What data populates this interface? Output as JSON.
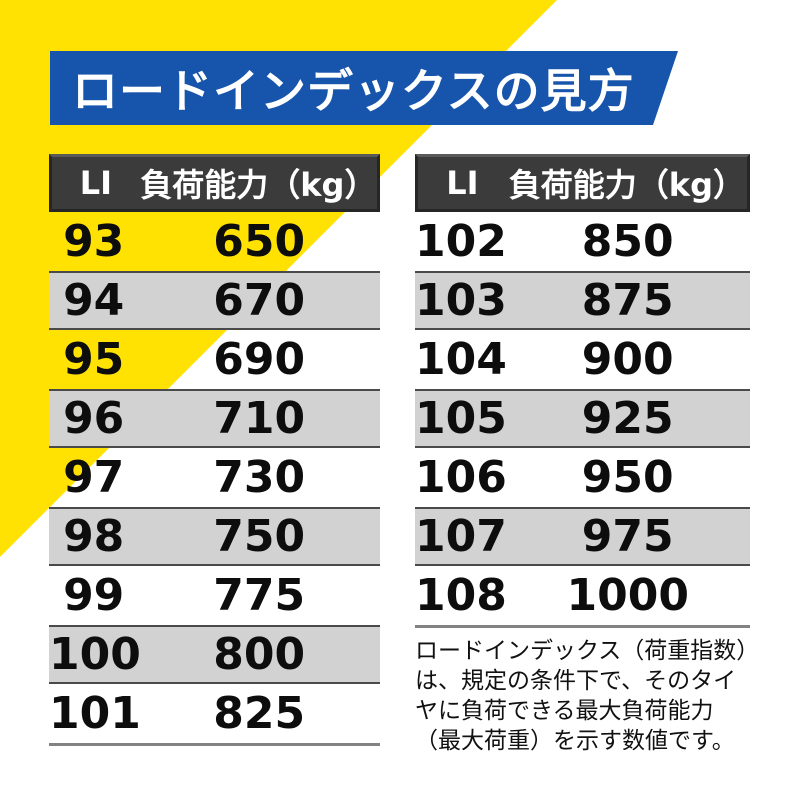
{
  "page": {
    "accent_yellow": "#ffe102",
    "banner_blue": "#1755ac",
    "table_header_gray": "#3b3b3b",
    "row_stripe_gray": "#d2d2d2"
  },
  "header": {
    "title": "ロードインデックスの見方"
  },
  "tables": [
    {
      "columns": [
        "LI",
        "負荷能力（kg）"
      ],
      "rows": [
        [
          "93",
          "650"
        ],
        [
          "94",
          "670"
        ],
        [
          "95",
          "690"
        ],
        [
          "96",
          "710"
        ],
        [
          "97",
          "730"
        ],
        [
          "98",
          "750"
        ],
        [
          "99",
          "775"
        ],
        [
          "100",
          "800"
        ],
        [
          "101",
          "825"
        ]
      ]
    },
    {
      "columns": [
        "LI",
        "負荷能力（kg）"
      ],
      "rows": [
        [
          "102",
          "850"
        ],
        [
          "103",
          "875"
        ],
        [
          "104",
          "900"
        ],
        [
          "105",
          "925"
        ],
        [
          "106",
          "950"
        ],
        [
          "107",
          "975"
        ],
        [
          "108",
          "1000"
        ]
      ]
    }
  ],
  "footnote": {
    "text": "ロードインデックス（荷重指数）は、規定の条件下で、そのタイヤに負荷できる最大負荷能力（最大荷重）を示す数値です。"
  }
}
